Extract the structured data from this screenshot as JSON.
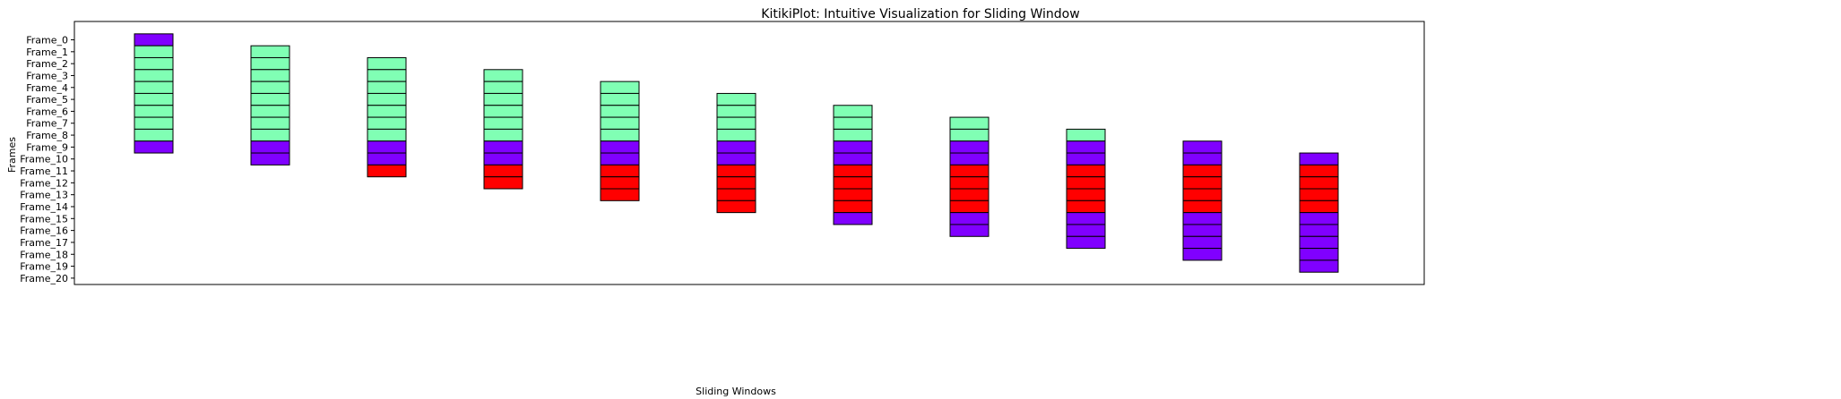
{
  "chart_data": {
    "type": "table",
    "title": "KitikiPlot: Intuitive Visualization for Sliding Window",
    "xlabel": "Sliding Windows",
    "ylabel": "Frames",
    "frames": [
      "Frame_0",
      "Frame_1",
      "Frame_2",
      "Frame_3",
      "Frame_4",
      "Frame_5",
      "Frame_6",
      "Frame_7",
      "Frame_8",
      "Frame_9",
      "Frame_10",
      "Frame_11",
      "Frame_12",
      "Frame_13",
      "Frame_14",
      "Frame_15",
      "Frame_16",
      "Frame_17",
      "Frame_18",
      "Frame_19",
      "Frame_20"
    ],
    "colors": {
      "purple": "#8000ff",
      "green": "#80ffb4",
      "red": "#ff0000"
    },
    "windows": [
      {
        "start": 0,
        "cells": [
          "purple",
          "green",
          "green",
          "green",
          "green",
          "green",
          "green",
          "green",
          "green",
          "purple"
        ]
      },
      {
        "start": 1,
        "cells": [
          "green",
          "green",
          "green",
          "green",
          "green",
          "green",
          "green",
          "green",
          "purple",
          "purple"
        ]
      },
      {
        "start": 2,
        "cells": [
          "green",
          "green",
          "green",
          "green",
          "green",
          "green",
          "green",
          "purple",
          "purple",
          "red"
        ]
      },
      {
        "start": 3,
        "cells": [
          "green",
          "green",
          "green",
          "green",
          "green",
          "green",
          "purple",
          "purple",
          "red",
          "red"
        ]
      },
      {
        "start": 4,
        "cells": [
          "green",
          "green",
          "green",
          "green",
          "green",
          "purple",
          "purple",
          "red",
          "red",
          "red"
        ]
      },
      {
        "start": 5,
        "cells": [
          "green",
          "green",
          "green",
          "green",
          "purple",
          "purple",
          "red",
          "red",
          "red",
          "red"
        ]
      },
      {
        "start": 6,
        "cells": [
          "green",
          "green",
          "green",
          "purple",
          "purple",
          "red",
          "red",
          "red",
          "red",
          "purple"
        ]
      },
      {
        "start": 7,
        "cells": [
          "green",
          "green",
          "purple",
          "purple",
          "red",
          "red",
          "red",
          "red",
          "purple",
          "purple"
        ]
      },
      {
        "start": 8,
        "cells": [
          "green",
          "purple",
          "purple",
          "red",
          "red",
          "red",
          "red",
          "purple",
          "purple",
          "purple"
        ]
      },
      {
        "start": 9,
        "cells": [
          "purple",
          "purple",
          "red",
          "red",
          "red",
          "red",
          "purple",
          "purple",
          "purple",
          "purple"
        ]
      },
      {
        "start": 10,
        "cells": [
          "purple",
          "red",
          "red",
          "red",
          "red",
          "purple",
          "purple",
          "purple",
          "purple",
          "purple"
        ]
      }
    ],
    "grid": false,
    "legend": "none"
  }
}
